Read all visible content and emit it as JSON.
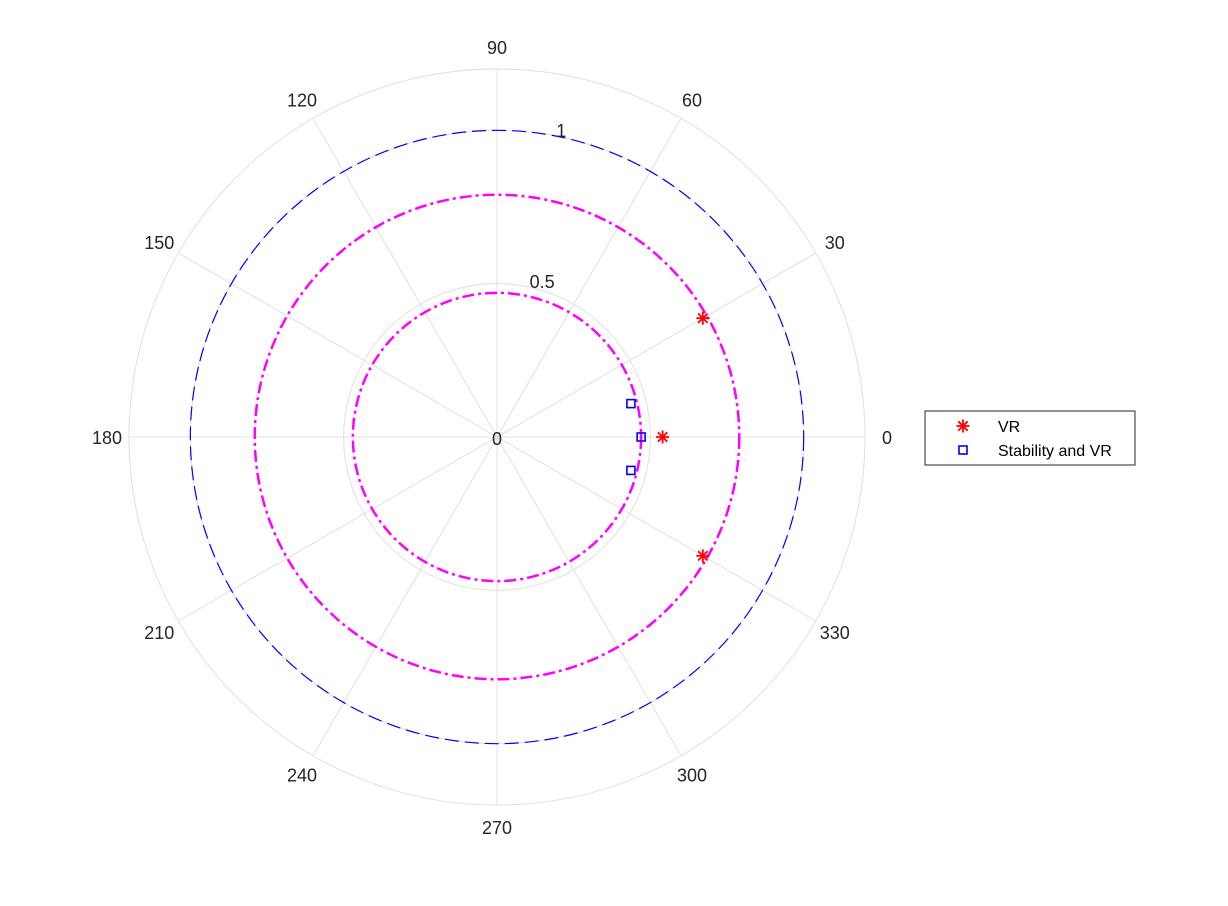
{
  "chart_data": {
    "type": "scatter",
    "projection": "polar",
    "title": "",
    "theta_unit": "degrees",
    "theta_ticks": [
      0,
      30,
      60,
      90,
      120,
      150,
      180,
      210,
      240,
      270,
      300,
      330
    ],
    "theta_tick_labels": [
      "0",
      "30",
      "60",
      "90",
      "120",
      "150",
      "180",
      "210",
      "240",
      "270",
      "300",
      "330"
    ],
    "rlim": [
      0,
      1.2
    ],
    "r_ticks": [
      0,
      0.5,
      1
    ],
    "r_tick_labels": [
      "0",
      "0.5",
      "1"
    ],
    "r_tick_angle": 80,
    "grid": true,
    "legend_position": "right",
    "series": [
      {
        "name": "VR",
        "marker": "asterisk",
        "color": "#ff0000",
        "points": [
          {
            "theta": 30,
            "r": 0.775
          },
          {
            "theta": 0,
            "r": 0.54
          },
          {
            "theta": -30,
            "r": 0.775
          }
        ]
      },
      {
        "name": "Stability and VR",
        "marker": "square",
        "color": "#0000ff",
        "points": [
          {
            "theta": 14,
            "r": 0.45
          },
          {
            "theta": 0,
            "r": 0.47
          },
          {
            "theta": -14,
            "r": 0.45
          }
        ]
      }
    ],
    "reference_circles": [
      {
        "r": 1.0,
        "style": "dashed",
        "color": "#0000ff"
      },
      {
        "r": 0.79,
        "style": "dash-dot",
        "color": "#ff00ff"
      },
      {
        "r": 0.47,
        "style": "dash-dot",
        "color": "#ff00ff"
      }
    ]
  }
}
